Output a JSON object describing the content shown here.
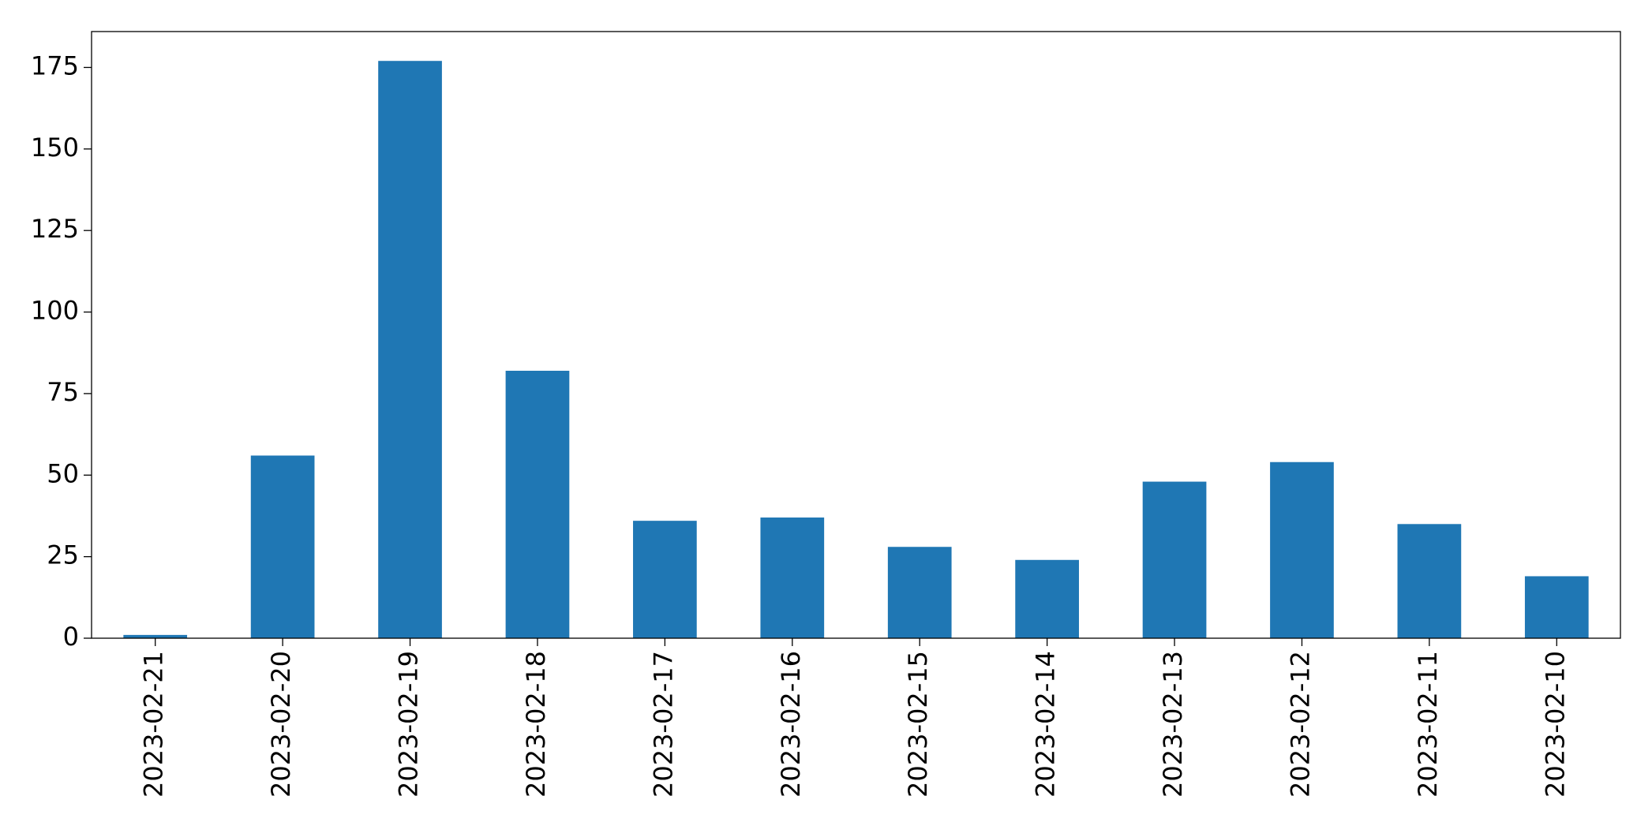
{
  "chart_data": {
    "type": "bar",
    "categories": [
      "2023-02-21",
      "2023-02-20",
      "2023-02-19",
      "2023-02-18",
      "2023-02-17",
      "2023-02-16",
      "2023-02-15",
      "2023-02-14",
      "2023-02-13",
      "2023-02-12",
      "2023-02-11",
      "2023-02-10"
    ],
    "values": [
      1,
      56,
      177,
      82,
      36,
      37,
      28,
      24,
      48,
      54,
      35,
      19
    ],
    "color": "#1f77b4",
    "ylim": [
      0,
      186
    ],
    "yticks": [
      0,
      25,
      50,
      75,
      100,
      125,
      150,
      175
    ],
    "grid": false
  }
}
